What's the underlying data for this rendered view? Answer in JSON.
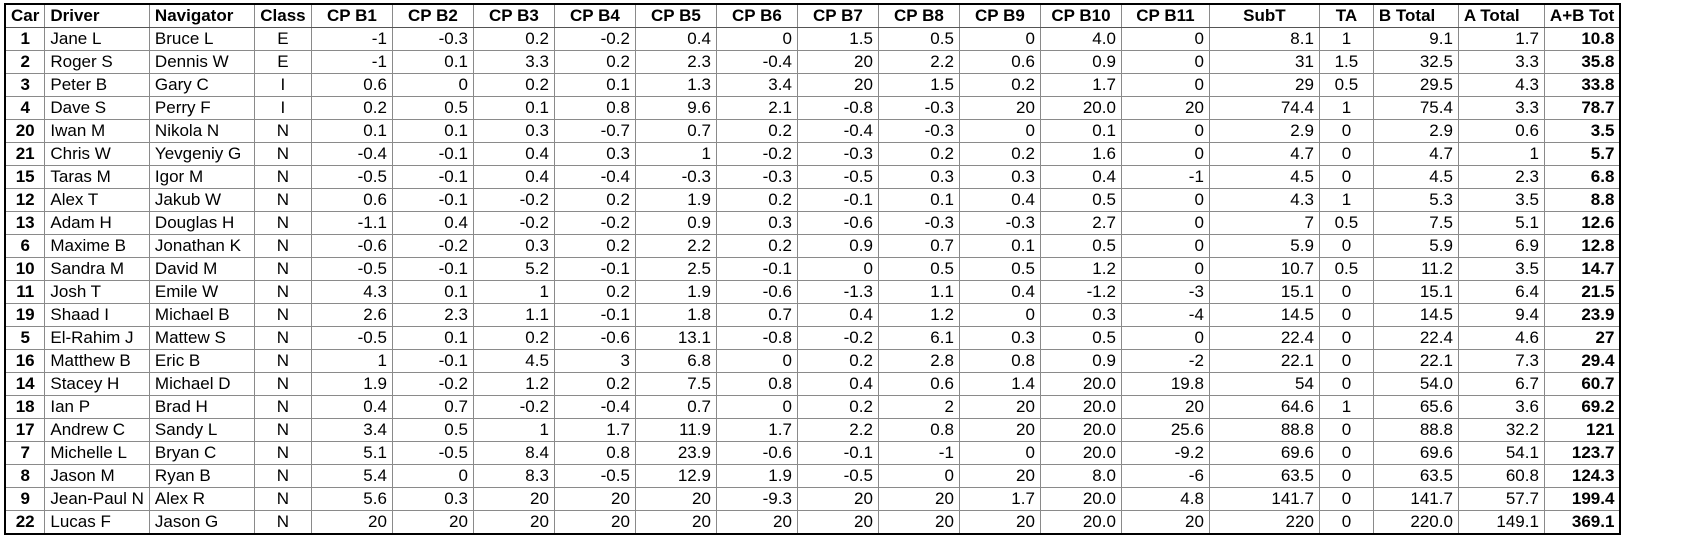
{
  "table": {
    "headers": [
      "Car",
      "Driver",
      "Navigator",
      "Class",
      "CP B1",
      "CP B2",
      "CP B3",
      "CP B4",
      "CP B5",
      "CP B6",
      "CP B7",
      "CP B8",
      "CP B9",
      "CP B10",
      "CP B11",
      "SubT",
      "TA",
      "B Total",
      "A Total",
      "A+B Tot"
    ],
    "rows": [
      [
        "1",
        "Jane L",
        "Bruce L",
        "E",
        "-1",
        "-0.3",
        "0.2",
        "-0.2",
        "0.4",
        "0",
        "1.5",
        "0.5",
        "0",
        "4.0",
        "0",
        "8.1",
        "1",
        "9.1",
        "1.7",
        "10.8"
      ],
      [
        "2",
        "Roger S",
        "Dennis W",
        "E",
        "-1",
        "0.1",
        "3.3",
        "0.2",
        "2.3",
        "-0.4",
        "20",
        "2.2",
        "0.6",
        "0.9",
        "0",
        "31",
        "1.5",
        "32.5",
        "3.3",
        "35.8"
      ],
      [
        "3",
        "Peter B",
        "Gary C",
        "I",
        "0.6",
        "0",
        "0.2",
        "0.1",
        "1.3",
        "3.4",
        "20",
        "1.5",
        "0.2",
        "1.7",
        "0",
        "29",
        "0.5",
        "29.5",
        "4.3",
        "33.8"
      ],
      [
        "4",
        "Dave S",
        "Perry F",
        "I",
        "0.2",
        "0.5",
        "0.1",
        "0.8",
        "9.6",
        "2.1",
        "-0.8",
        "-0.3",
        "20",
        "20.0",
        "20",
        "74.4",
        "1",
        "75.4",
        "3.3",
        "78.7"
      ],
      [
        "20",
        "Iwan M",
        "Nikola N",
        "N",
        "0.1",
        "0.1",
        "0.3",
        "-0.7",
        "0.7",
        "0.2",
        "-0.4",
        "-0.3",
        "0",
        "0.1",
        "0",
        "2.9",
        "0",
        "2.9",
        "0.6",
        "3.5"
      ],
      [
        "21",
        "Chris W",
        "Yevgeniy G",
        "N",
        "-0.4",
        "-0.1",
        "0.4",
        "0.3",
        "1",
        "-0.2",
        "-0.3",
        "0.2",
        "0.2",
        "1.6",
        "0",
        "4.7",
        "0",
        "4.7",
        "1",
        "5.7"
      ],
      [
        "15",
        "Taras M",
        "Igor M",
        "N",
        "-0.5",
        "-0.1",
        "0.4",
        "-0.4",
        "-0.3",
        "-0.3",
        "-0.5",
        "0.3",
        "0.3",
        "0.4",
        "-1",
        "4.5",
        "0",
        "4.5",
        "2.3",
        "6.8"
      ],
      [
        "12",
        "Alex T",
        "Jakub W",
        "N",
        "0.6",
        "-0.1",
        "-0.2",
        "0.2",
        "1.9",
        "0.2",
        "-0.1",
        "0.1",
        "0.4",
        "0.5",
        "0",
        "4.3",
        "1",
        "5.3",
        "3.5",
        "8.8"
      ],
      [
        "13",
        "Adam H",
        "Douglas H",
        "N",
        "-1.1",
        "0.4",
        "-0.2",
        "-0.2",
        "0.9",
        "0.3",
        "-0.6",
        "-0.3",
        "-0.3",
        "2.7",
        "0",
        "7",
        "0.5",
        "7.5",
        "5.1",
        "12.6"
      ],
      [
        "6",
        "Maxime B",
        "Jonathan K",
        "N",
        "-0.6",
        "-0.2",
        "0.3",
        "0.2",
        "2.2",
        "0.2",
        "0.9",
        "0.7",
        "0.1",
        "0.5",
        "0",
        "5.9",
        "0",
        "5.9",
        "6.9",
        "12.8"
      ],
      [
        "10",
        "Sandra M",
        "David M",
        "N",
        "-0.5",
        "-0.1",
        "5.2",
        "-0.1",
        "2.5",
        "-0.1",
        "0",
        "0.5",
        "0.5",
        "1.2",
        "0",
        "10.7",
        "0.5",
        "11.2",
        "3.5",
        "14.7"
      ],
      [
        "11",
        "Josh T",
        "Emile W",
        "N",
        "4.3",
        "0.1",
        "1",
        "0.2",
        "1.9",
        "-0.6",
        "-1.3",
        "1.1",
        "0.4",
        "-1.2",
        "-3",
        "15.1",
        "0",
        "15.1",
        "6.4",
        "21.5"
      ],
      [
        "19",
        "Shaad I",
        "Michael B",
        "N",
        "2.6",
        "2.3",
        "1.1",
        "-0.1",
        "1.8",
        "0.7",
        "0.4",
        "1.2",
        "0",
        "0.3",
        "-4",
        "14.5",
        "0",
        "14.5",
        "9.4",
        "23.9"
      ],
      [
        "5",
        "El-Rahim J",
        "Mattew S",
        "N",
        "-0.5",
        "0.1",
        "0.2",
        "-0.6",
        "13.1",
        "-0.8",
        "-0.2",
        "6.1",
        "0.3",
        "0.5",
        "0",
        "22.4",
        "0",
        "22.4",
        "4.6",
        "27"
      ],
      [
        "16",
        "Matthew B",
        "Eric B",
        "N",
        "1",
        "-0.1",
        "4.5",
        "3",
        "6.8",
        "0",
        "0.2",
        "2.8",
        "0.8",
        "0.9",
        "-2",
        "22.1",
        "0",
        "22.1",
        "7.3",
        "29.4"
      ],
      [
        "14",
        "Stacey H",
        "Michael D",
        "N",
        "1.9",
        "-0.2",
        "1.2",
        "0.2",
        "7.5",
        "0.8",
        "0.4",
        "0.6",
        "1.4",
        "20.0",
        "19.8",
        "54",
        "0",
        "54.0",
        "6.7",
        "60.7"
      ],
      [
        "18",
        "Ian P",
        "Brad H",
        "N",
        "0.4",
        "0.7",
        "-0.2",
        "-0.4",
        "0.7",
        "0",
        "0.2",
        "2",
        "20",
        "20.0",
        "20",
        "64.6",
        "1",
        "65.6",
        "3.6",
        "69.2"
      ],
      [
        "17",
        "Andrew C",
        "Sandy L",
        "N",
        "3.4",
        "0.5",
        "1",
        "1.7",
        "11.9",
        "1.7",
        "2.2",
        "0.8",
        "20",
        "20.0",
        "25.6",
        "88.8",
        "0",
        "88.8",
        "32.2",
        "121"
      ],
      [
        "7",
        "Michelle L",
        "Bryan C",
        "N",
        "5.1",
        "-0.5",
        "8.4",
        "0.8",
        "23.9",
        "-0.6",
        "-0.1",
        "-1",
        "0",
        "20.0",
        "-9.2",
        "69.6",
        "0",
        "69.6",
        "54.1",
        "123.7"
      ],
      [
        "8",
        "Jason M",
        "Ryan B",
        "N",
        "5.4",
        "0",
        "8.3",
        "-0.5",
        "12.9",
        "1.9",
        "-0.5",
        "0",
        "20",
        "8.0",
        "-6",
        "63.5",
        "0",
        "63.5",
        "60.8",
        "124.3"
      ],
      [
        "9",
        "Jean-Paul N",
        "Alex R",
        "N",
        "5.6",
        "0.3",
        "20",
        "20",
        "20",
        "-9.3",
        "20",
        "20",
        "1.7",
        "20.0",
        "4.8",
        "141.7",
        "0",
        "141.7",
        "57.7",
        "199.4"
      ],
      [
        "22",
        "Lucas F",
        "Jason G",
        "N",
        "20",
        "20",
        "20",
        "20",
        "20",
        "20",
        "20",
        "20",
        "20",
        "20.0",
        "20",
        "220",
        "0",
        "220.0",
        "149.1",
        "369.1"
      ]
    ]
  }
}
